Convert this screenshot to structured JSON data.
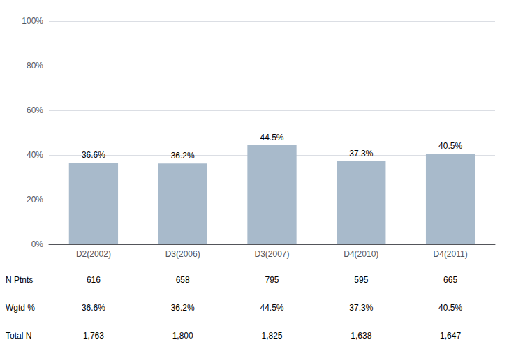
{
  "chart_data": {
    "type": "bar",
    "categories": [
      "D2(2002)",
      "D3(2006)",
      "D3(2007)",
      "D4(2010)",
      "D4(2011)"
    ],
    "values": [
      36.6,
      36.2,
      44.5,
      37.3,
      40.5
    ],
    "value_labels": [
      "36.6%",
      "36.2%",
      "44.5%",
      "37.3%",
      "40.5%"
    ],
    "data_labels": true,
    "color": "#a8bacb",
    "ylim": [
      0,
      100
    ],
    "yticks": [
      {
        "value": 0,
        "label": "0%"
      },
      {
        "value": 20,
        "label": "20%"
      },
      {
        "value": 40,
        "label": "40%"
      },
      {
        "value": 60,
        "label": "60%"
      },
      {
        "value": 80,
        "label": "80%"
      },
      {
        "value": 100,
        "label": "100%"
      }
    ],
    "grid": true,
    "table": {
      "row_labels": [
        "N Ptnts",
        "Wgtd %",
        "Total N"
      ],
      "rows": [
        [
          "616",
          "658",
          "795",
          "595",
          "665"
        ],
        [
          "36.6%",
          "36.2%",
          "44.5%",
          "37.3%",
          "40.5%"
        ],
        [
          "1,763",
          "1,800",
          "1,825",
          "1,638",
          "1,647"
        ]
      ]
    }
  }
}
